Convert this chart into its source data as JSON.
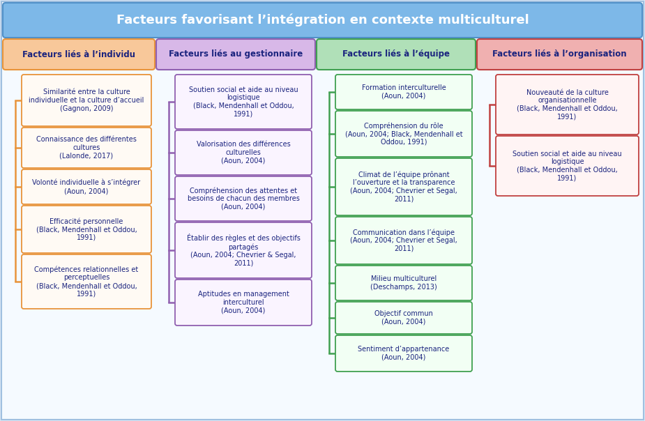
{
  "title": "Facteurs favorisant l’intégration en contexte multiculturel",
  "title_bg_top": "#a8d0f0",
  "title_bg_bottom": "#6aaee0",
  "title_text_color": "white",
  "outer_bg": "#dce8f5",
  "inner_bg": "#f5faff",
  "columns": [
    {
      "header": "Facteurs liés à l’individu",
      "header_bg": "#f8c89a",
      "header_border": "#e8943a",
      "header_text_color": "#1a237e",
      "box_bg": "#fffaf4",
      "box_border": "#e8943a",
      "line_color": "#e8943a",
      "items": [
        "Similarité entre la culture\nindividuelle et la culture d’accueil\n(Gagnon, 2009)",
        "Connaissance des différentes\ncultures\n(Lalonde, 2017)",
        "Volonté individuelle à s’intégrer\n(Aoun, 2004)",
        "Efficacité personnelle\n(Black, Mendenhall et Oddou,\n1991)",
        "Compétences relationnelles et\nperceptuelles\n(Black, Mendenhall et Oddou,\n1991)"
      ]
    },
    {
      "header": "Facteurs liés au gestionnaire",
      "header_bg": "#d8b8e8",
      "header_border": "#9060b0",
      "header_text_color": "#1a237e",
      "box_bg": "#faf4ff",
      "box_border": "#9060b0",
      "line_color": "#9060b0",
      "items": [
        "Soutien social et aide au niveau\nlogistique\n(Black, Mendenhall et Oddou,\n1991)",
        "Valorisation des différences\nculturelles\n(Aoun, 2004)",
        "Compréhension des attentes et\nbesoins de chacun des membres\n(Aoun, 2004)",
        "Établir des règles et des objectifs\npartagés\n(Aoun, 2004; Chevrier & Segal,\n2011)",
        "Aptitudes en management\ninterculturel\n(Aoun, 2004)"
      ]
    },
    {
      "header": "Facteurs liés à l’équipe",
      "header_bg": "#b0e0b8",
      "header_border": "#40a050",
      "header_text_color": "#1a237e",
      "box_bg": "#f2fff4",
      "box_border": "#40a050",
      "line_color": "#40a050",
      "items": [
        "Formation interculturelle\n(Aoun, 2004)",
        "Compréhension du rôle\n(Aoun, 2004; Black, Mendenhall et\nOddou, 1991)",
        "Climat de l’équipe prônant\nl’ouverture et la transparence\n(Aoun, 2004; Chevrier et Segal,\n2011)",
        "Communication dans l’équipe\n(Aoun, 2004; Chevrier et Segal,\n2011)",
        "Milieu multiculturel\n(Deschamps, 2013)",
        "Objectif commun\n(Aoun, 2004)",
        "Sentiment d’appartenance\n(Aoun, 2004)"
      ]
    },
    {
      "header": "Facteurs liés à l’organisation",
      "header_bg": "#f0b0b0",
      "header_border": "#c04040",
      "header_text_color": "#1a237e",
      "box_bg": "#fff4f4",
      "box_border": "#c04040",
      "line_color": "#c04040",
      "items": [
        "Nouveauté de la culture\norganisationnelle\n(Black, Mendenhall et Oddou,\n1991)",
        "Soutien social et aide au niveau\nlogistique\n(Black, Mendenhall et Oddou,\n1991)"
      ]
    }
  ]
}
